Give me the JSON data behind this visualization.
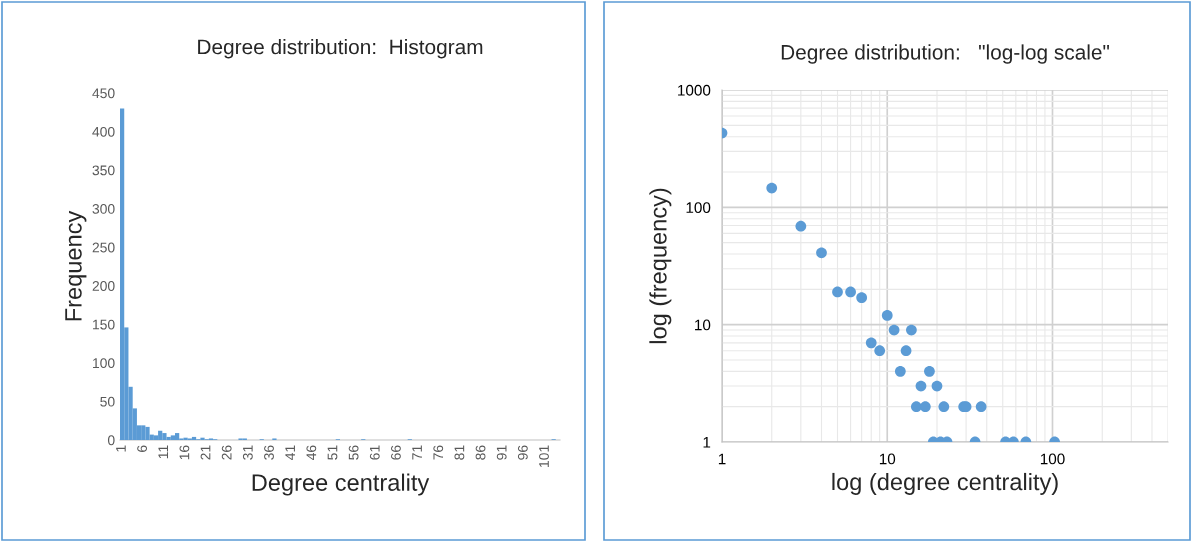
{
  "chart_data": [
    {
      "type": "bar",
      "title": "Degree distribution:  Histogram",
      "xlabel": "Degree centrality",
      "ylabel": "Frequency",
      "categories": [
        "1",
        null,
        null,
        null,
        null,
        "6",
        null,
        null,
        null,
        null,
        "11",
        null,
        null,
        null,
        null,
        "16",
        null,
        null,
        null,
        null,
        "21",
        null,
        null,
        null,
        null,
        "26",
        null,
        null,
        null,
        null,
        "31",
        null,
        null,
        null,
        null,
        "36",
        null,
        null,
        null,
        null,
        "41",
        null,
        null,
        null,
        null,
        "46",
        null,
        null,
        null,
        null,
        "51",
        null,
        null,
        null,
        null,
        "56",
        null,
        null,
        null,
        null,
        "61",
        null,
        null,
        null,
        null,
        "66",
        null,
        null,
        null,
        null,
        "71",
        null,
        null,
        null,
        null,
        "76",
        null,
        null,
        null,
        null,
        "81",
        null,
        null,
        null,
        null,
        "86",
        null,
        null,
        null,
        null,
        "91",
        null,
        null,
        null,
        null,
        "96",
        null,
        null,
        null,
        null,
        "101",
        null,
        null,
        null
      ],
      "values": [
        430,
        146,
        69,
        41,
        19,
        19,
        17,
        7,
        6,
        12,
        9,
        4,
        6,
        9,
        2,
        3,
        2,
        4,
        1,
        3,
        1,
        2,
        1,
        0,
        0,
        0,
        0,
        0,
        2,
        2,
        0,
        0,
        0,
        1,
        0,
        0,
        2,
        0,
        0,
        0,
        0,
        0,
        0,
        0,
        0,
        0,
        0,
        0,
        0,
        0,
        0,
        1,
        0,
        0,
        0,
        0,
        0,
        1,
        0,
        0,
        0,
        0,
        0,
        0,
        0,
        0,
        0,
        0,
        1,
        0,
        0,
        0,
        0,
        0,
        0,
        0,
        0,
        0,
        0,
        0,
        0,
        0,
        0,
        0,
        0,
        0,
        0,
        0,
        0,
        0,
        0,
        0,
        0,
        0,
        0,
        0,
        0,
        0,
        0,
        0,
        0,
        0,
        1,
        0
      ],
      "color": "#5b9bd5",
      "ylim": [
        0,
        450
      ],
      "yticks": [
        0,
        50,
        100,
        150,
        200,
        250,
        300,
        350,
        400,
        450
      ],
      "grid": false
    },
    {
      "type": "scatter",
      "title": "Degree distribution:   \"log-log scale\"",
      "xlabel": "log (degree centrality)",
      "ylabel": "log (frequency)",
      "x": [
        1,
        2,
        3,
        4,
        5,
        6,
        7,
        8,
        9,
        10,
        11,
        12,
        13,
        14,
        15,
        16,
        17,
        18,
        19,
        20,
        21,
        22,
        23,
        29,
        30,
        34,
        37,
        52,
        58,
        69,
        103
      ],
      "values": [
        430,
        146,
        69,
        41,
        19,
        19,
        17,
        7,
        6,
        12,
        9,
        4,
        6,
        9,
        2,
        3,
        2,
        4,
        1,
        3,
        1,
        2,
        1,
        2,
        2,
        1,
        2,
        1,
        1,
        1,
        1
      ],
      "color": "#5b9bd5",
      "marker": "circle",
      "log": "xy",
      "xlim": [
        1,
        500
      ],
      "ylim": [
        1,
        1000
      ],
      "xticks": [
        1,
        10,
        100
      ],
      "yticks": [
        1,
        10,
        100,
        1000
      ],
      "grid": true
    }
  ]
}
